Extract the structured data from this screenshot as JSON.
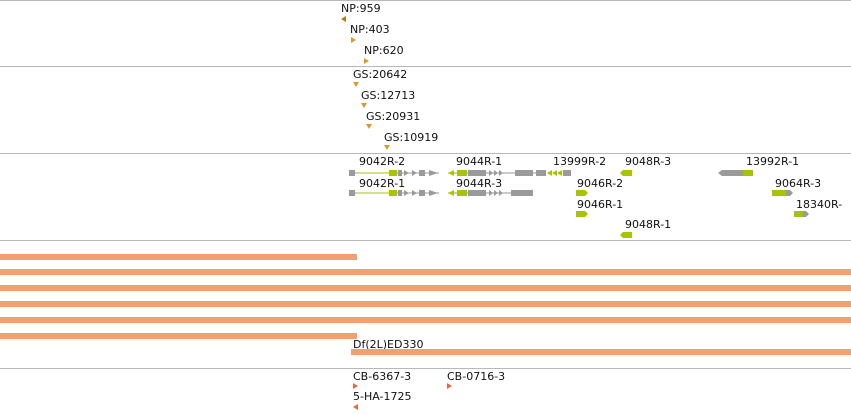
{
  "np_track": {
    "features": [
      {
        "label": "NP:959",
        "icon": "left-triangle-icon"
      },
      {
        "label": "NP:403",
        "icon": "right-triangle-icon"
      },
      {
        "label": "NP:620",
        "icon": "right-triangle-icon"
      }
    ]
  },
  "gs_track": {
    "features": [
      {
        "label": "GS:20642",
        "icon": "down-triangle-icon"
      },
      {
        "label": "GS:12713",
        "icon": "down-triangle-icon"
      },
      {
        "label": "GS:20931",
        "icon": "down-triangle-icon"
      },
      {
        "label": "GS:10919",
        "icon": "down-triangle-icon"
      }
    ]
  },
  "gene_track": {
    "transcripts": [
      {
        "label": "9042R-2"
      },
      {
        "label": "9042R-1"
      },
      {
        "label": "9044R-1"
      },
      {
        "label": "9044R-3"
      },
      {
        "label": "13999R-2"
      },
      {
        "label": "9046R-2"
      },
      {
        "label": "9046R-1"
      },
      {
        "label": "9048R-3"
      },
      {
        "label": "9048R-1"
      },
      {
        "label": "13992R-1"
      },
      {
        "label": "9064R-3"
      },
      {
        "label": "18340R-"
      }
    ],
    "colors": {
      "utr": "#a8c400",
      "exon": "#9a9a9a",
      "intron": "#9a9a9a"
    }
  },
  "deficiency_track": {
    "label": "Df(2L)ED330",
    "color": "#f2a070"
  },
  "insertion_track": {
    "features": [
      {
        "label": "CB-6367-3",
        "icon": "right-triangle-icon"
      },
      {
        "label": "CB-0716-3",
        "icon": "right-triangle-icon"
      },
      {
        "label": "5-HA-1725",
        "icon": "left-triangle-icon"
      }
    ]
  }
}
